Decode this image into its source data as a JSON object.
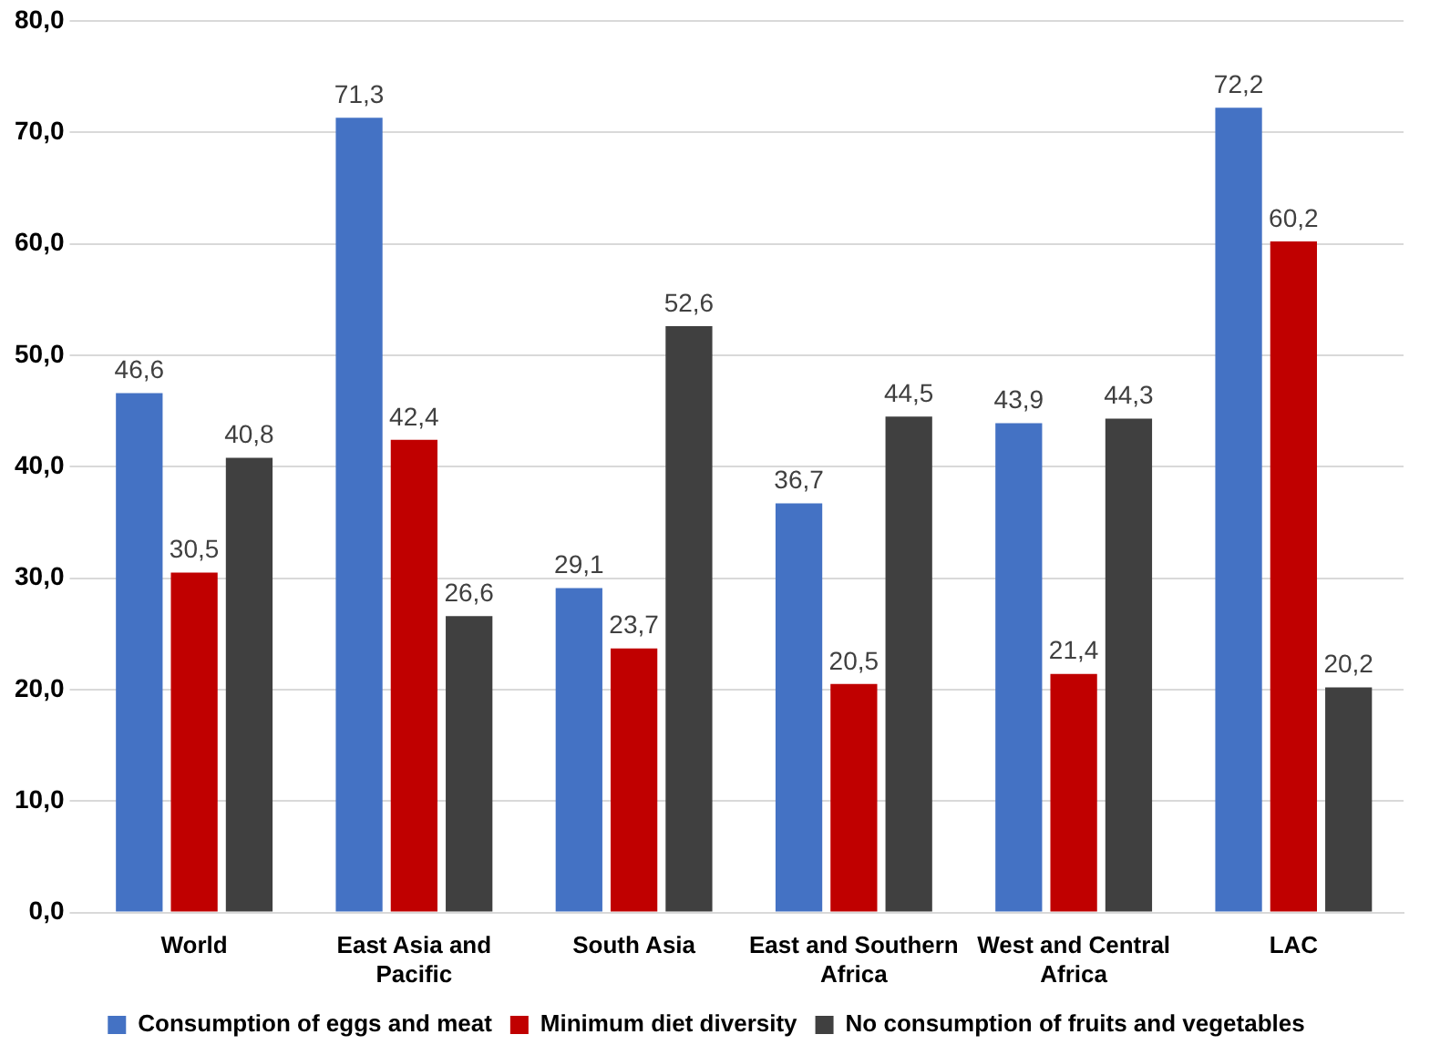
{
  "chart_data": {
    "type": "bar",
    "categories": [
      "World",
      "East Asia and Pacific",
      "South Asia",
      "East and Southern Africa",
      "West and Central Africa",
      "LAC"
    ],
    "series": [
      {
        "name": "Consumption of eggs and meat",
        "color": "#4472c4",
        "values": [
          46.6,
          71.3,
          29.1,
          36.7,
          43.9,
          72.2
        ],
        "value_labels": [
          "46,6",
          "71,3",
          "29,1",
          "36,7",
          "43,9",
          "72,2"
        ]
      },
      {
        "name": "Minimum diet diversity",
        "color": "#c00000",
        "values": [
          30.5,
          42.4,
          23.7,
          20.5,
          21.4,
          60.2
        ],
        "value_labels": [
          "30,5",
          "42,4",
          "23,7",
          "20,5",
          "21,4",
          "60,2"
        ]
      },
      {
        "name": "No consumption of fruits and vegetables",
        "color": "#404040",
        "values": [
          40.8,
          26.6,
          52.6,
          44.5,
          44.3,
          20.2
        ],
        "value_labels": [
          "40,8",
          "26,6",
          "52,6",
          "44,5",
          "44,3",
          "20,2"
        ]
      }
    ],
    "ylim": [
      0,
      80
    ],
    "yticks": [
      {
        "value": 0,
        "label": "0,0"
      },
      {
        "value": 10,
        "label": "10,0"
      },
      {
        "value": 20,
        "label": "20,0"
      },
      {
        "value": 30,
        "label": "30,0"
      },
      {
        "value": 40,
        "label": "40,0"
      },
      {
        "value": 50,
        "label": "50,0"
      },
      {
        "value": 60,
        "label": "60,0"
      },
      {
        "value": 70,
        "label": "70,0"
      },
      {
        "value": 80,
        "label": "80,0"
      }
    ],
    "grid": "y",
    "legend": "bottom"
  }
}
